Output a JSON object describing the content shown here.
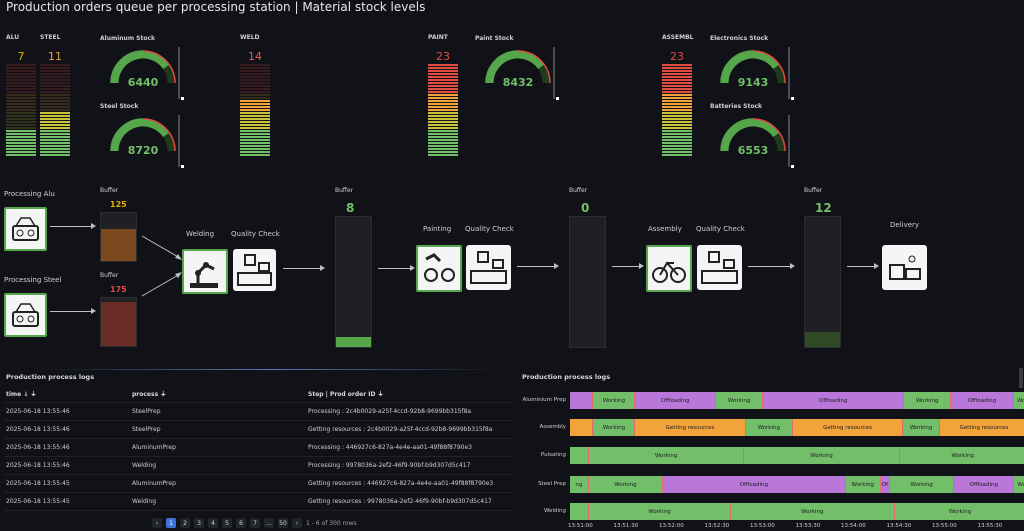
{
  "dashboard": {
    "title": "Production orders queue per processing station | Material stock levels"
  },
  "queues": [
    {
      "label": "ALU",
      "value": "7",
      "color": "#e0b400"
    },
    {
      "label": "STEEL",
      "value": "11",
      "color": "#f2a33a"
    },
    {
      "label": "WELD",
      "value": "14",
      "color": "#e25d4f"
    },
    {
      "label": "PAINT",
      "value": "23",
      "color": "#e24d42"
    },
    {
      "label": "ASSEMBL",
      "value": "23",
      "color": "#e24d42"
    }
  ],
  "stocks": [
    {
      "label": "Aluminum Stock",
      "value": "6440"
    },
    {
      "label": "Steel Stock",
      "value": "8720"
    },
    {
      "label": "Paint Stock",
      "value": "8432"
    },
    {
      "label": "Electronics Stock",
      "value": "9143"
    },
    {
      "label": "Batteries Stock",
      "value": "6553"
    }
  ],
  "flow": {
    "processing_alu": "Processing Alu",
    "processing_steel": "Processing Steel",
    "buffer_label": "Buffer",
    "buffer_alu": "125",
    "buffer_steel": "175",
    "welding": "Welding",
    "quality_check": "Quality Check",
    "buffer_1": "8",
    "painting": "Painting",
    "buffer_2": "0",
    "assembly": "Assembly",
    "buffer_3": "12",
    "delivery": "Delivery"
  },
  "logs": {
    "title": "Production process logs",
    "columns": [
      "time",
      "process",
      "Step | Prod order ID"
    ],
    "rows": [
      [
        "2025-06-18 13:55:46",
        "SteelPrep",
        "Processing : 2c4b0029-a25f-4ccd-92b8-9699bb315f8a"
      ],
      [
        "2025-06-18 13:55:46",
        "SteelPrep",
        "Getting resources : 2c4b0029-a25f-4ccd-92b8-9699bb315f8a"
      ],
      [
        "2025-06-18 13:55:46",
        "AluminumPrep",
        "Processing : 446927c6-827a-4e4e-aa01-49f88f8790e3"
      ],
      [
        "2025-06-18 13:55:46",
        "Welding",
        "Processing : 9978036a-2ef2-46f9-90bf-b9d307d5c417"
      ],
      [
        "2025-06-18 13:55:45",
        "AluminumPrep",
        "Getting resources : 446927c6-827a-4e4e-aa01-49f88f8790e3"
      ],
      [
        "2025-06-18 13:55:45",
        "Welding",
        "Getting resources : 9978036a-2ef2-46f9-90bf-b9d307d5c417"
      ]
    ],
    "pages": [
      "1",
      "2",
      "3",
      "4",
      "5",
      "6",
      "7",
      "...",
      "50"
    ],
    "rows_info": "1 - 6 of 300 rows"
  },
  "timeline": {
    "title": "Production process logs",
    "rows": [
      {
        "label": "Aluminium Prep",
        "segments": [
          [
            "",
            "#b877d9",
            22
          ],
          [
            "Working",
            "#73bf69",
            40
          ],
          [
            "Offloading",
            "#b877d9",
            78
          ],
          [
            "Working",
            "#73bf69",
            45
          ],
          [
            "Offloading",
            "#b877d9",
            137
          ],
          [
            "Working",
            "#73bf69",
            45
          ],
          [
            "Offloading",
            "#b877d9",
            60
          ],
          [
            "Wo",
            "#73bf69",
            15
          ]
        ]
      },
      {
        "label": "Assembly",
        "segments": [
          [
            "",
            "#f2a33a",
            22
          ],
          [
            "Working",
            "#73bf69",
            40
          ],
          [
            "Getting resources",
            "#f2a33a",
            107
          ],
          [
            "Working",
            "#73bf69",
            45
          ],
          [
            "Getting resources",
            "#f2a33a",
            107
          ],
          [
            "Working",
            "#73bf69",
            35
          ],
          [
            "Getting resources",
            "#f2a33a",
            86
          ]
        ]
      },
      {
        "label": "Pulsating",
        "segments": [
          [
            "",
            "#73bf69",
            18
          ],
          [
            "Working",
            "#73bf69",
            150
          ],
          [
            "Working",
            "#73bf69",
            152
          ],
          [
            "Working",
            "#73bf69",
            122
          ]
        ]
      },
      {
        "label": "Steel Prep",
        "segments": [
          [
            "ng",
            "#73bf69",
            18
          ],
          [
            "Working",
            "#73bf69",
            75
          ],
          [
            "Offloading",
            "#b877d9",
            185
          ],
          [
            "Working",
            "#73bf69",
            35
          ],
          [
            "Of",
            "#b877d9",
            8
          ],
          [
            "Working",
            "#73bf69",
            65
          ],
          [
            "Offloading",
            "#b877d9",
            60
          ],
          [
            "Wo",
            "#73bf69",
            15
          ]
        ]
      },
      {
        "label": "Welding",
        "segments": [
          [
            "",
            "#73bf69",
            18
          ],
          [
            "Working",
            "#73bf69",
            137
          ],
          [
            "Working",
            "#73bf69",
            160
          ],
          [
            "Working",
            "#73bf69",
            127
          ]
        ]
      }
    ],
    "ticks": [
      "13:51:00",
      "13:51:30",
      "13:52:00",
      "13:52:30",
      "13:53:00",
      "13:53:30",
      "13:54:00",
      "13:54:30",
      "13:55:00",
      "13:55:30"
    ]
  }
}
